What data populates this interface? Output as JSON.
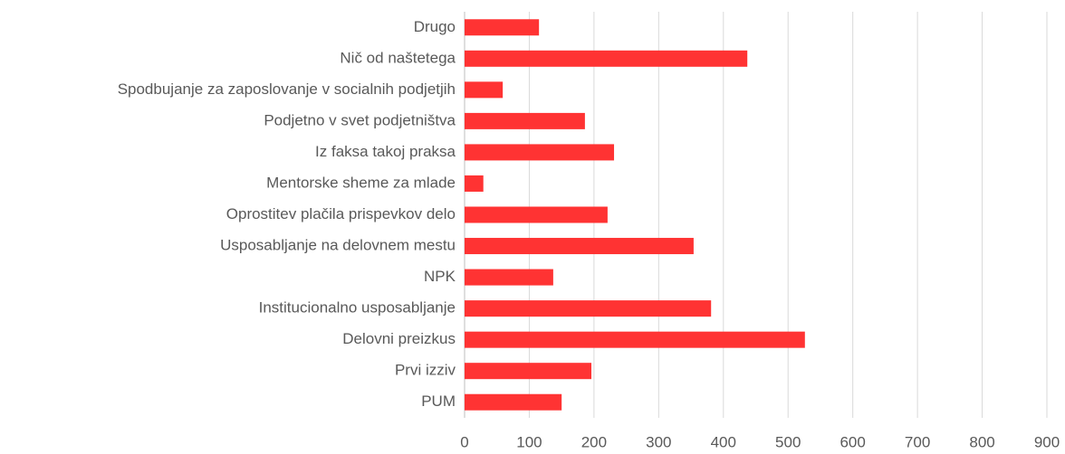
{
  "chart_data": {
    "type": "barh",
    "categories": [
      "Drugo",
      "Nič od naštetega",
      "Spodbujanje za zaposlovanje v socialnih podjetjih",
      "Podjetno v svet podjetništva",
      "Iz faksa takoj praksa",
      "Mentorske sheme za mlade",
      "Oprostitev plačila prispevkov delo",
      "Usposabljanje na delovnem mestu",
      "NPK",
      "Institucionalno usposabljanje",
      "Delovni preizkus",
      "Prvi izziv",
      "PUM"
    ],
    "values": [
      115,
      437,
      59,
      186,
      231,
      29,
      221,
      354,
      137,
      381,
      526,
      196,
      150
    ],
    "color": "#ff3333",
    "xlim": [
      0,
      900
    ],
    "xticks": [
      0,
      100,
      200,
      300,
      400,
      500,
      600,
      700,
      800,
      900
    ],
    "grid": true
  }
}
